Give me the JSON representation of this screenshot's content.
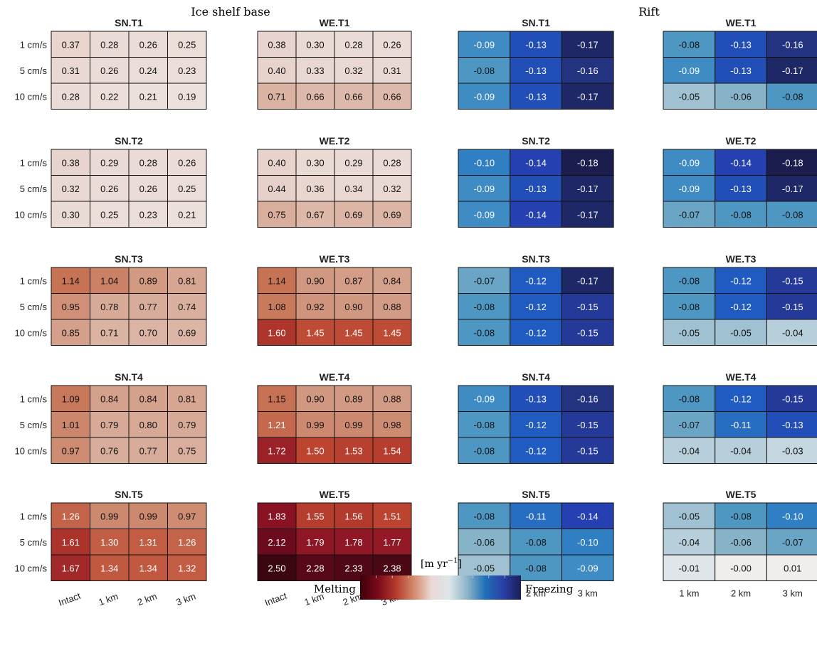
{
  "chart_data": {
    "type": "heatmap",
    "group_titles": [
      "Ice shelf base",
      "Rift"
    ],
    "row_labels": [
      "1 cm/s",
      "5 cm/s",
      "10 cm/s"
    ],
    "base_col_labels": [
      "Intact",
      "1 km",
      "2 km",
      "3 km"
    ],
    "rift_col_labels": [
      "1 km",
      "2 km",
      "3 km"
    ],
    "colorbar": {
      "unit_label": "[m yr",
      "unit_exponent": "−1",
      "unit_close": "]",
      "left_label": "Melting",
      "right_label": "Freezing",
      "colors": [
        "#3d0008",
        "#7a0a1a",
        "#b33a2c",
        "#d4896b",
        "#ead9d6",
        "#dce5ea",
        "#8cb3c6",
        "#1f70b8",
        "#2a3fa6",
        "#1a1f55"
      ]
    },
    "panels": [
      {
        "title": "SN.T1",
        "group": "base",
        "values": [
          [
            0.37,
            0.28,
            0.26,
            0.25
          ],
          [
            0.31,
            0.26,
            0.24,
            0.23
          ],
          [
            0.28,
            0.22,
            0.21,
            0.19
          ]
        ],
        "labels": [
          [
            "0.37",
            "0.28",
            "0.26",
            "0.25"
          ],
          [
            "0.31",
            "0.26",
            "0.24",
            "0.23"
          ],
          [
            "0.28",
            "0.22",
            "0.21",
            "0.19"
          ]
        ]
      },
      {
        "title": "WE.T1",
        "group": "base",
        "values": [
          [
            0.38,
            0.3,
            0.28,
            0.26
          ],
          [
            0.4,
            0.33,
            0.32,
            0.31
          ],
          [
            0.71,
            0.66,
            0.66,
            0.66
          ]
        ],
        "labels": [
          [
            "0.38",
            "0.30",
            "0.28",
            "0.26"
          ],
          [
            "0.40",
            "0.33",
            "0.32",
            "0.31"
          ],
          [
            "0.71",
            "0.66",
            "0.66",
            "0.66"
          ]
        ]
      },
      {
        "title": "SN.T1",
        "group": "rift",
        "values": [
          [
            -0.09,
            -0.13,
            -0.17
          ],
          [
            -0.08,
            -0.13,
            -0.16
          ],
          [
            -0.09,
            -0.13,
            -0.17
          ]
        ],
        "labels": [
          [
            "-0.09",
            "-0.13",
            "-0.17"
          ],
          [
            "-0.08",
            "-0.13",
            "-0.16"
          ],
          [
            "-0.09",
            "-0.13",
            "-0.17"
          ]
        ]
      },
      {
        "title": "WE.T1",
        "group": "rift",
        "values": [
          [
            -0.08,
            -0.13,
            -0.16
          ],
          [
            -0.09,
            -0.13,
            -0.17
          ],
          [
            -0.05,
            -0.06,
            -0.08
          ]
        ],
        "labels": [
          [
            "-0.08",
            "-0.13",
            "-0.16"
          ],
          [
            "-0.09",
            "-0.13",
            "-0.17"
          ],
          [
            "-0.05",
            "-0.06",
            "-0.08"
          ]
        ]
      },
      {
        "title": "SN.T2",
        "group": "base",
        "values": [
          [
            0.38,
            0.29,
            0.28,
            0.26
          ],
          [
            0.32,
            0.26,
            0.26,
            0.25
          ],
          [
            0.3,
            0.25,
            0.23,
            0.21
          ]
        ],
        "labels": [
          [
            "0.38",
            "0.29",
            "0.28",
            "0.26"
          ],
          [
            "0.32",
            "0.26",
            "0.26",
            "0.25"
          ],
          [
            "0.30",
            "0.25",
            "0.23",
            "0.21"
          ]
        ]
      },
      {
        "title": "WE.T2",
        "group": "base",
        "values": [
          [
            0.4,
            0.3,
            0.29,
            0.28
          ],
          [
            0.44,
            0.36,
            0.34,
            0.32
          ],
          [
            0.75,
            0.67,
            0.69,
            0.69
          ]
        ],
        "labels": [
          [
            "0.40",
            "0.30",
            "0.29",
            "0.28"
          ],
          [
            "0.44",
            "0.36",
            "0.34",
            "0.32"
          ],
          [
            "0.75",
            "0.67",
            "0.69",
            "0.69"
          ]
        ]
      },
      {
        "title": "SN.T2",
        "group": "rift",
        "values": [
          [
            -0.1,
            -0.14,
            -0.18
          ],
          [
            -0.09,
            -0.13,
            -0.17
          ],
          [
            -0.09,
            -0.14,
            -0.17
          ]
        ],
        "labels": [
          [
            "-0.10",
            "-0.14",
            "-0.18"
          ],
          [
            "-0.09",
            "-0.13",
            "-0.17"
          ],
          [
            "-0.09",
            "-0.14",
            "-0.17"
          ]
        ]
      },
      {
        "title": "WE.T2",
        "group": "rift",
        "values": [
          [
            -0.09,
            -0.14,
            -0.18
          ],
          [
            -0.09,
            -0.13,
            -0.17
          ],
          [
            -0.07,
            -0.08,
            -0.08
          ]
        ],
        "labels": [
          [
            "-0.09",
            "-0.14",
            "-0.18"
          ],
          [
            "-0.09",
            "-0.13",
            "-0.17"
          ],
          [
            "-0.07",
            "-0.08",
            "-0.08"
          ]
        ]
      },
      {
        "title": "SN.T3",
        "group": "base",
        "values": [
          [
            1.14,
            1.04,
            0.89,
            0.81
          ],
          [
            0.95,
            0.78,
            0.77,
            0.74
          ],
          [
            0.85,
            0.71,
            0.7,
            0.69
          ]
        ],
        "labels": [
          [
            "1.14",
            "1.04",
            "0.89",
            "0.81"
          ],
          [
            "0.95",
            "0.78",
            "0.77",
            "0.74"
          ],
          [
            "0.85",
            "0.71",
            "0.70",
            "0.69"
          ]
        ]
      },
      {
        "title": "WE.T3",
        "group": "base",
        "values": [
          [
            1.14,
            0.9,
            0.87,
            0.84
          ],
          [
            1.08,
            0.92,
            0.9,
            0.88
          ],
          [
            1.6,
            1.45,
            1.45,
            1.45
          ]
        ],
        "labels": [
          [
            "1.14",
            "0.90",
            "0.87",
            "0.84"
          ],
          [
            "1.08",
            "0.92",
            "0.90",
            "0.88"
          ],
          [
            "1.60",
            "1.45",
            "1.45",
            "1.45"
          ]
        ]
      },
      {
        "title": "SN.T3",
        "group": "rift",
        "values": [
          [
            -0.07,
            -0.12,
            -0.17
          ],
          [
            -0.08,
            -0.12,
            -0.15
          ],
          [
            -0.08,
            -0.12,
            -0.15
          ]
        ],
        "labels": [
          [
            "-0.07",
            "-0.12",
            "-0.17"
          ],
          [
            "-0.08",
            "-0.12",
            "-0.15"
          ],
          [
            "-0.08",
            "-0.12",
            "-0.15"
          ]
        ]
      },
      {
        "title": "WE.T3",
        "group": "rift",
        "values": [
          [
            -0.08,
            -0.12,
            -0.15
          ],
          [
            -0.08,
            -0.12,
            -0.15
          ],
          [
            -0.05,
            -0.05,
            -0.04
          ]
        ],
        "labels": [
          [
            "-0.08",
            "-0.12",
            "-0.15"
          ],
          [
            "-0.08",
            "-0.12",
            "-0.15"
          ],
          [
            "-0.05",
            "-0.05",
            "-0.04"
          ]
        ]
      },
      {
        "title": "SN.T4",
        "group": "base",
        "values": [
          [
            1.09,
            0.84,
            0.84,
            0.81
          ],
          [
            1.01,
            0.79,
            0.8,
            0.79
          ],
          [
            0.97,
            0.76,
            0.77,
            0.75
          ]
        ],
        "labels": [
          [
            "1.09",
            "0.84",
            "0.84",
            "0.81"
          ],
          [
            "1.01",
            "0.79",
            "0.80",
            "0.79"
          ],
          [
            "0.97",
            "0.76",
            "0.77",
            "0.75"
          ]
        ]
      },
      {
        "title": "WE.T4",
        "group": "base",
        "values": [
          [
            1.15,
            0.9,
            0.89,
            0.88
          ],
          [
            1.21,
            0.99,
            0.99,
            0.98
          ],
          [
            1.72,
            1.5,
            1.53,
            1.54
          ]
        ],
        "labels": [
          [
            "1.15",
            "0.90",
            "0.89",
            "0.88"
          ],
          [
            "1.21",
            "0.99",
            "0.99",
            "0.98"
          ],
          [
            "1.72",
            "1.50",
            "1.53",
            "1.54"
          ]
        ]
      },
      {
        "title": "SN.T4",
        "group": "rift",
        "values": [
          [
            -0.09,
            -0.13,
            -0.16
          ],
          [
            -0.08,
            -0.12,
            -0.15
          ],
          [
            -0.08,
            -0.12,
            -0.15
          ]
        ],
        "labels": [
          [
            "-0.09",
            "-0.13",
            "-0.16"
          ],
          [
            "-0.08",
            "-0.12",
            "-0.15"
          ],
          [
            "-0.08",
            "-0.12",
            "-0.15"
          ]
        ]
      },
      {
        "title": "WE.T4",
        "group": "rift",
        "values": [
          [
            -0.08,
            -0.12,
            -0.15
          ],
          [
            -0.07,
            -0.11,
            -0.13
          ],
          [
            -0.04,
            -0.04,
            -0.03
          ]
        ],
        "labels": [
          [
            "-0.08",
            "-0.12",
            "-0.15"
          ],
          [
            "-0.07",
            "-0.11",
            "-0.13"
          ],
          [
            "-0.04",
            "-0.04",
            "-0.03"
          ]
        ]
      },
      {
        "title": "SN.T5",
        "group": "base",
        "values": [
          [
            1.26,
            0.99,
            0.99,
            0.97
          ],
          [
            1.61,
            1.3,
            1.31,
            1.26
          ],
          [
            1.67,
            1.34,
            1.34,
            1.32
          ]
        ],
        "labels": [
          [
            "1.26",
            "0.99",
            "0.99",
            "0.97"
          ],
          [
            "1.61",
            "1.30",
            "1.31",
            "1.26"
          ],
          [
            "1.67",
            "1.34",
            "1.34",
            "1.32"
          ]
        ]
      },
      {
        "title": "WE.T5",
        "group": "base",
        "values": [
          [
            1.83,
            1.55,
            1.56,
            1.51
          ],
          [
            2.12,
            1.79,
            1.78,
            1.77
          ],
          [
            2.5,
            2.28,
            2.33,
            2.38
          ]
        ],
        "labels": [
          [
            "1.83",
            "1.55",
            "1.56",
            "1.51"
          ],
          [
            "2.12",
            "1.79",
            "1.78",
            "1.77"
          ],
          [
            "2.50",
            "2.28",
            "2.33",
            "2.38"
          ]
        ]
      },
      {
        "title": "SN.T5",
        "group": "rift",
        "values": [
          [
            -0.08,
            -0.11,
            -0.14
          ],
          [
            -0.06,
            -0.08,
            -0.1
          ],
          [
            -0.05,
            -0.08,
            -0.09
          ]
        ],
        "labels": [
          [
            "-0.08",
            "-0.11",
            "-0.14"
          ],
          [
            "-0.06",
            "-0.08",
            "-0.10"
          ],
          [
            "-0.05",
            "-0.08",
            "-0.09"
          ]
        ]
      },
      {
        "title": "WE.T5",
        "group": "rift",
        "values": [
          [
            -0.05,
            -0.08,
            -0.1
          ],
          [
            -0.04,
            -0.06,
            -0.07
          ],
          [
            -0.01,
            -0.0,
            0.01
          ]
        ],
        "labels": [
          [
            "-0.05",
            "-0.08",
            "-0.10"
          ],
          [
            "-0.04",
            "-0.06",
            "-0.07"
          ],
          [
            "-0.01",
            "-0.00",
            "0.01"
          ]
        ]
      }
    ]
  }
}
